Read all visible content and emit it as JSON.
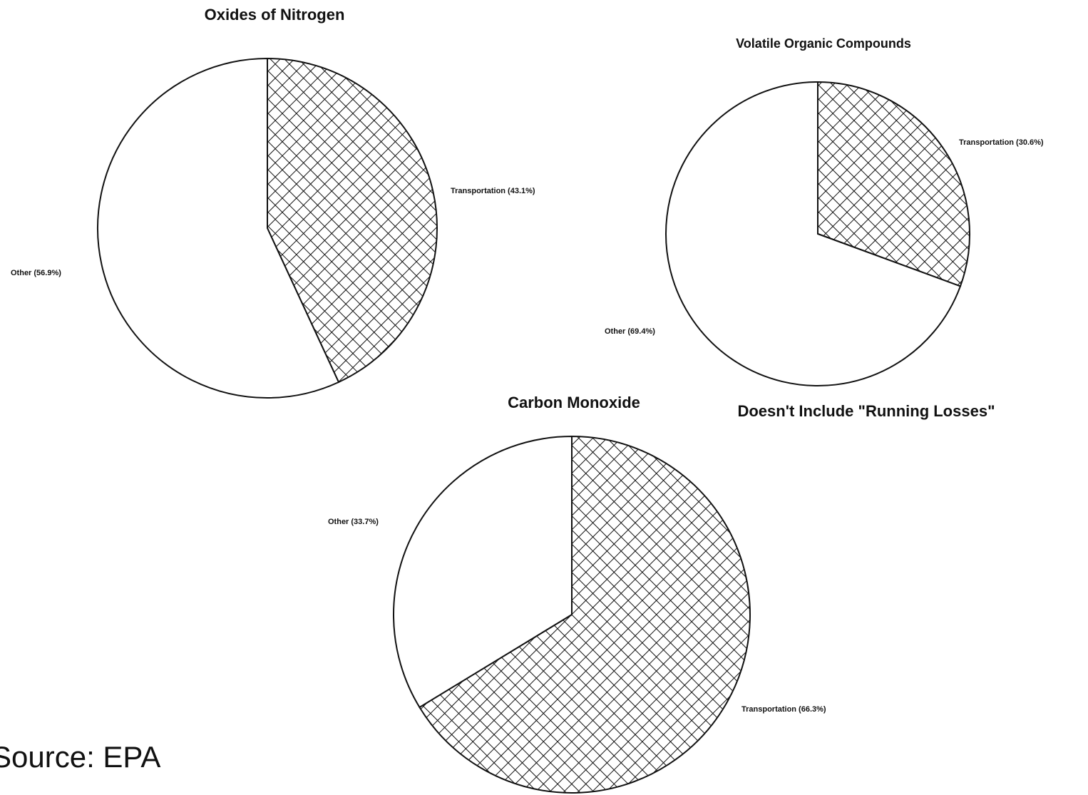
{
  "chart_data": [
    {
      "type": "pie",
      "title": "Oxides of Nitrogen",
      "values": [
        43.1,
        56.9
      ],
      "value_labels": [
        "Transportation (43.1%)",
        "Other (56.9%)"
      ],
      "fills": [
        "crosshatch",
        "white"
      ]
    },
    {
      "type": "pie",
      "title": "Volatile Organic Compounds",
      "values": [
        30.6,
        69.4
      ],
      "value_labels": [
        "Transportation (30.6%)",
        "Other (69.4%)"
      ],
      "fills": [
        "crosshatch",
        "white"
      ]
    },
    {
      "type": "pie",
      "title": "Carbon Monoxide",
      "values": [
        66.3,
        33.7
      ],
      "value_labels": [
        "Transportation (66.3%)",
        "Other (33.7%)"
      ],
      "fills": [
        "crosshatch",
        "white"
      ]
    }
  ],
  "note": "Doesn't Include \"Running Losses\"",
  "source": "Source: EPA"
}
